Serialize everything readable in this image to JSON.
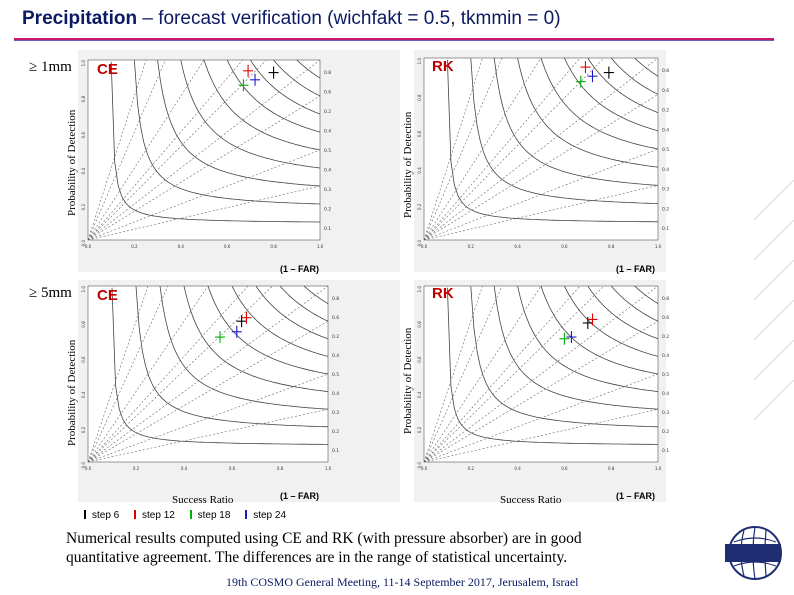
{
  "slide": {
    "title_bold": "Precipitation",
    "title_rest": " – forecast verification (wichfakt = 0.5, tkmmin = 0)",
    "caption_line1": "Numerical results computed using CE and RK (with pressure absorber) are in good",
    "caption_line2": "quantitative agreement. The differences are in the range of statistical uncertainty.",
    "footer": "19th COSMO General Meeting, 11-14 September 2017, Jerusalem, Israel",
    "thresholds": [
      "≥ 1mm",
      "≥ 5mm"
    ],
    "accent_color": "#c9166e",
    "title_color": "#0b1a63"
  },
  "axis_labels": {
    "y": "Probability of Detection",
    "x": "Success Ratio",
    "x_alt": "(1 – FAR)"
  },
  "legend": {
    "entries": [
      {
        "label": "step 6",
        "color": "#000000"
      },
      {
        "label": "step 12",
        "color": "#e00000"
      },
      {
        "label": "step 18",
        "color": "#00b000"
      },
      {
        "label": "step 24",
        "color": "#1a1ad0"
      }
    ]
  },
  "chart_data": [
    {
      "type": "scatter",
      "panel": "1mm-CE",
      "method": "CE",
      "threshold": "≥ 1mm",
      "xlim": [
        0,
        1
      ],
      "ylim": [
        0,
        1
      ],
      "bias_labels": [
        "0.8",
        "0.6",
        "0.2",
        "0.4",
        "0.5",
        "0.4",
        "0.3",
        "0.2",
        "0.1"
      ],
      "series": [
        {
          "name": "step 6",
          "x": 0.8,
          "y": 0.93
        },
        {
          "name": "step 12",
          "x": 0.69,
          "y": 0.94
        },
        {
          "name": "step 18",
          "x": 0.67,
          "y": 0.86
        },
        {
          "name": "step 24",
          "x": 0.72,
          "y": 0.89
        }
      ]
    },
    {
      "type": "scatter",
      "panel": "1mm-RK",
      "method": "RK",
      "threshold": "≥ 1mm",
      "xlim": [
        0,
        1
      ],
      "ylim": [
        0,
        1
      ],
      "bias_labels": [
        "0.8",
        "0.6",
        "0.2",
        "0.4",
        "0.5",
        "0.4",
        "0.3",
        "0.2",
        "0.1"
      ],
      "series": [
        {
          "name": "step 6",
          "x": 0.79,
          "y": 0.92
        },
        {
          "name": "step 12",
          "x": 0.69,
          "y": 0.95
        },
        {
          "name": "step 18",
          "x": 0.67,
          "y": 0.87
        },
        {
          "name": "step 24",
          "x": 0.72,
          "y": 0.9
        }
      ]
    },
    {
      "type": "scatter",
      "panel": "5mm-CE",
      "method": "CE",
      "threshold": "≥ 5mm",
      "xlim": [
        0,
        1
      ],
      "ylim": [
        0,
        1
      ],
      "bias_labels": [
        "0.8",
        "0.6",
        "0.2",
        "0.4",
        "0.5",
        "0.4",
        "0.3",
        "0.2",
        "0.1"
      ],
      "series": [
        {
          "name": "step 6",
          "x": 0.64,
          "y": 0.8
        },
        {
          "name": "step 12",
          "x": 0.66,
          "y": 0.82
        },
        {
          "name": "step 18",
          "x": 0.55,
          "y": 0.71
        },
        {
          "name": "step 24",
          "x": 0.62,
          "y": 0.74
        }
      ]
    },
    {
      "type": "scatter",
      "panel": "5mm-RK",
      "method": "RK",
      "threshold": "≥ 5mm",
      "xlim": [
        0,
        1
      ],
      "ylim": [
        0,
        1
      ],
      "bias_labels": [
        "0.8",
        "0.6",
        "0.2",
        "0.4",
        "0.5",
        "0.4",
        "0.3",
        "0.2",
        "0.1"
      ],
      "series": [
        {
          "name": "step 6",
          "x": 0.7,
          "y": 0.79
        },
        {
          "name": "step 12",
          "x": 0.72,
          "y": 0.81
        },
        {
          "name": "step 18",
          "x": 0.6,
          "y": 0.7
        },
        {
          "name": "step 24",
          "x": 0.63,
          "y": 0.71
        }
      ]
    }
  ]
}
